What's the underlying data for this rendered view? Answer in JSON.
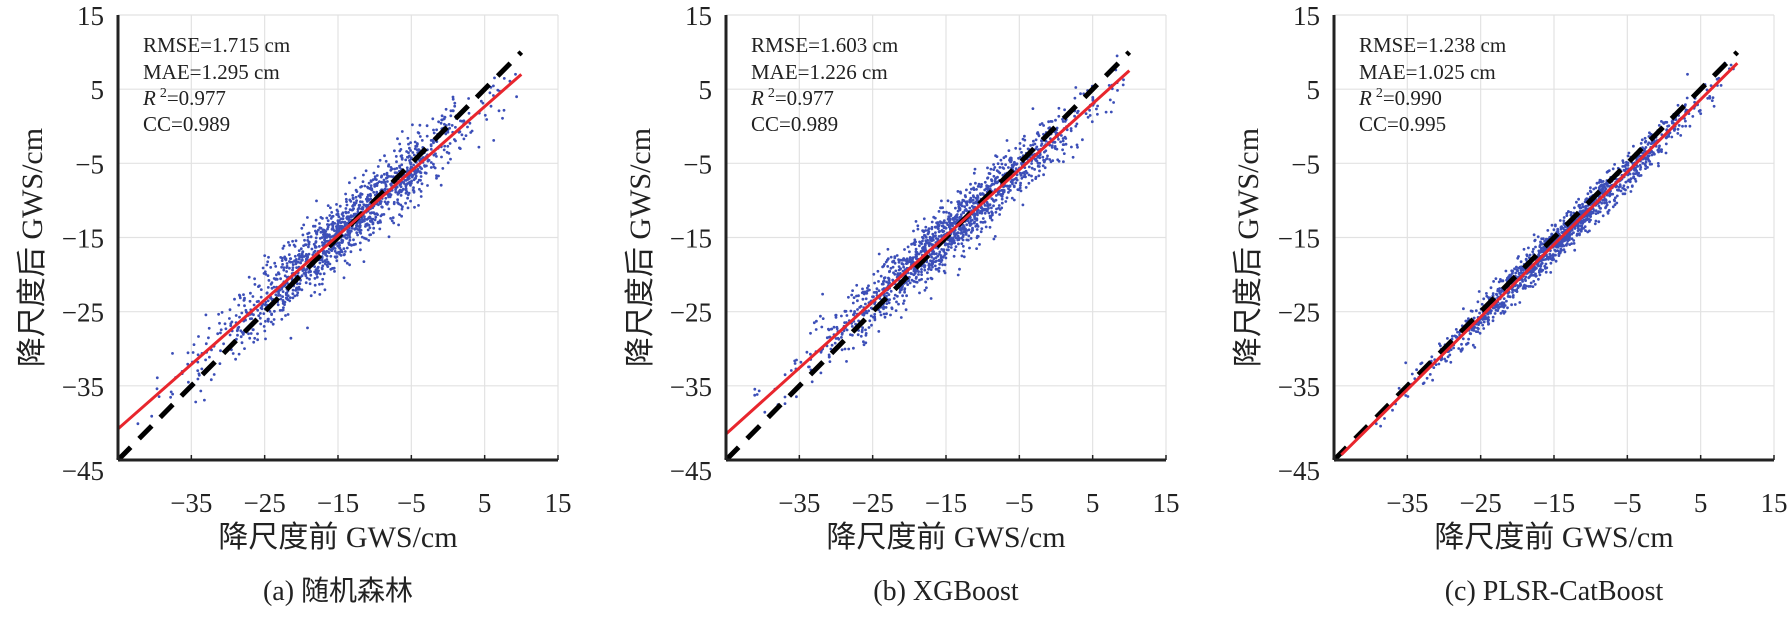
{
  "chart_data": [
    {
      "type": "scatter",
      "caption": "(a) 随机森林",
      "xlabel": "降尺度前 GWS/cm",
      "ylabel": "降尺度后 GWS/cm",
      "xlim": [
        -45,
        15
      ],
      "ylim": [
        -45,
        15
      ],
      "xticks": [
        "-35",
        "-25",
        "-15",
        "-5",
        "5",
        "15"
      ],
      "yticks": [
        "15",
        "5",
        "-5",
        "-15",
        "-25",
        "-35",
        "-45"
      ],
      "grid": true,
      "stats": {
        "rmse": "RMSE=1.715 cm",
        "mae": "MAE=1.295 cm",
        "r2_label": "R",
        "r2_sup": "2",
        "r2_value": "=0.977",
        "cc": "CC=0.989"
      },
      "fit_line": {
        "x": [
          -45,
          10
        ],
        "y": [
          -40.8,
          7.0
        ]
      },
      "identity_line": {
        "x": [
          -45,
          10
        ],
        "y": [
          -45,
          10
        ]
      },
      "point_spread": 2.2,
      "colors": {
        "points": "#3c4fb8",
        "fit": "#e8262d",
        "identity": "#000000"
      }
    },
    {
      "type": "scatter",
      "caption": "(b) XGBoost",
      "xlabel": "降尺度前 GWS/cm",
      "ylabel": "降尺度后 GWS/cm",
      "xlim": [
        -45,
        15
      ],
      "ylim": [
        -45,
        15
      ],
      "xticks": [
        "-35",
        "-25",
        "-15",
        "-5",
        "5",
        "15"
      ],
      "yticks": [
        "15",
        "5",
        "-5",
        "-15",
        "-25",
        "-35",
        "-45"
      ],
      "grid": true,
      "stats": {
        "rmse": "RMSE=1.603 cm",
        "mae": "MAE=1.226 cm",
        "r2_label": "R",
        "r2_sup": "2",
        "r2_value": "=0.977",
        "cc": "CC=0.989"
      },
      "fit_line": {
        "x": [
          -45,
          10
        ],
        "y": [
          -41.5,
          7.5
        ]
      },
      "identity_line": {
        "x": [
          -45,
          10
        ],
        "y": [
          -45,
          10
        ]
      },
      "point_spread": 2.0,
      "colors": {
        "points": "#3c4fb8",
        "fit": "#e8262d",
        "identity": "#000000"
      }
    },
    {
      "type": "scatter",
      "caption": "(c) PLSR-CatBoost",
      "xlabel": "降尺度前 GWS/cm",
      "ylabel": "降尺度后 GWS/cm",
      "xlim": [
        -45,
        15
      ],
      "ylim": [
        -45,
        15
      ],
      "xticks": [
        "-35",
        "-25",
        "-15",
        "-5",
        "5",
        "15"
      ],
      "yticks": [
        "15",
        "5",
        "-5",
        "-15",
        "-25",
        "-35",
        "-45"
      ],
      "grid": true,
      "stats": {
        "rmse": "RMSE=1.238 cm",
        "mae": "MAE=1.025 cm",
        "r2_label": "R",
        "r2_sup": "2",
        "r2_value": "=0.990",
        "cc": "CC=0.995"
      },
      "fit_line": {
        "x": [
          -44,
          10
        ],
        "y": [
          -44.3,
          8.5
        ]
      },
      "identity_line": {
        "x": [
          -45,
          10
        ],
        "y": [
          -45,
          10
        ]
      },
      "point_spread": 1.2,
      "colors": {
        "points": "#3c4fb8",
        "fit": "#e8262d",
        "identity": "#000000"
      }
    }
  ]
}
